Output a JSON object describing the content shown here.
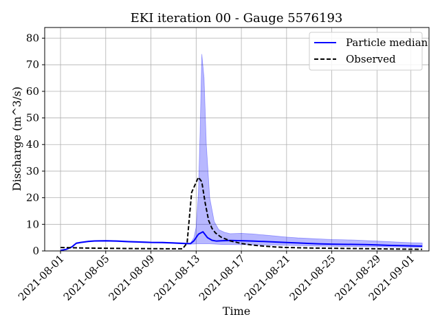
{
  "chart_data": {
    "type": "line",
    "title": "EKI iteration 00 - Gauge 5576193",
    "xlabel": "Time",
    "ylabel": "Discharge (m^3/s)",
    "xlim_days": [
      -1.4,
      32.6
    ],
    "ylim": [
      0,
      84
    ],
    "grid": true,
    "legend_position": "top-right",
    "x_ticks": [
      {
        "day": 0,
        "label": "2021-08-01"
      },
      {
        "day": 4,
        "label": "2021-08-05"
      },
      {
        "day": 8,
        "label": "2021-08-09"
      },
      {
        "day": 12,
        "label": "2021-08-13"
      },
      {
        "day": 16,
        "label": "2021-08-17"
      },
      {
        "day": 20,
        "label": "2021-08-21"
      },
      {
        "day": 24,
        "label": "2021-08-25"
      },
      {
        "day": 28,
        "label": "2021-08-29"
      },
      {
        "day": 31,
        "label": "2021-09-01"
      }
    ],
    "y_ticks": [
      0,
      10,
      20,
      30,
      40,
      50,
      60,
      70,
      80
    ],
    "series": [
      {
        "name": "Particle median",
        "color": "#0000ff",
        "style": "solid",
        "x": [
          0,
          0.5,
          1,
          1.4,
          1.8,
          2.5,
          3,
          4,
          5,
          6,
          7,
          8,
          9,
          10,
          11,
          11.5,
          11.8,
          12.2,
          12.6,
          13,
          13.4,
          13.8,
          14.2,
          15,
          16,
          17,
          18,
          19,
          20,
          21,
          22,
          23,
          24,
          25,
          26,
          27,
          28,
          29,
          30,
          31,
          32
        ],
        "values": [
          0.2,
          0.6,
          1.5,
          2.9,
          3.2,
          3.6,
          3.75,
          3.8,
          3.7,
          3.5,
          3.35,
          3.2,
          3.15,
          3.0,
          2.8,
          2.75,
          3.8,
          6.3,
          7.2,
          5.0,
          4.0,
          3.7,
          3.8,
          3.95,
          3.85,
          3.7,
          3.55,
          3.35,
          3.15,
          3.0,
          2.8,
          2.65,
          2.55,
          2.5,
          2.45,
          2.4,
          2.25,
          2.1,
          2.0,
          1.9,
          1.8
        ]
      },
      {
        "name": "Observed",
        "color": "#000000",
        "style": "dashed",
        "x": [
          0,
          1,
          2,
          4,
          6,
          8,
          10,
          10.8,
          11.2,
          11.6,
          12.2,
          12.5,
          12.8,
          13.1,
          13.4,
          13.7,
          14.2,
          15,
          16,
          17,
          18,
          19,
          20,
          21,
          22,
          24,
          26,
          28,
          30,
          32
        ],
        "values": [
          1.3,
          1.2,
          1.1,
          1.0,
          0.9,
          0.85,
          0.8,
          0.8,
          3.0,
          22.0,
          27.7,
          26.0,
          18.0,
          11.5,
          8.5,
          6.8,
          5.2,
          3.8,
          2.8,
          2.2,
          1.8,
          1.5,
          1.3,
          1.2,
          1.1,
          1.0,
          0.9,
          0.8,
          0.7,
          0.6
        ]
      }
    ],
    "band": {
      "name": "Particle spread",
      "color": "#0000ff",
      "opacity": 0.28,
      "x": [
        0,
        0.5,
        1,
        1.4,
        1.8,
        2.5,
        3,
        4,
        5,
        6,
        7,
        8,
        9,
        10,
        11,
        11.5,
        11.8,
        12,
        12.2,
        12.35,
        12.5,
        12.7,
        12.9,
        13.2,
        13.6,
        14,
        14.5,
        15,
        16,
        17,
        18,
        19,
        20,
        21,
        22,
        23,
        24,
        25,
        26,
        27,
        28,
        29,
        30,
        31,
        32
      ],
      "lower": [
        0.1,
        0.5,
        1.3,
        2.7,
        3.0,
        3.4,
        3.55,
        3.6,
        3.5,
        3.3,
        3.15,
        3.0,
        2.95,
        2.8,
        2.6,
        2.55,
        2.6,
        2.65,
        2.7,
        2.7,
        2.7,
        2.7,
        2.7,
        2.7,
        2.6,
        2.5,
        2.4,
        2.4,
        2.35,
        2.3,
        2.25,
        2.2,
        2.1,
        2.0,
        1.9,
        1.8,
        1.75,
        1.7,
        1.65,
        1.6,
        1.55,
        1.5,
        1.45,
        1.4,
        1.35
      ],
      "upper": [
        0.3,
        0.7,
        1.7,
        3.1,
        3.4,
        3.8,
        3.95,
        4.0,
        3.9,
        3.7,
        3.55,
        3.4,
        3.35,
        3.2,
        3.0,
        2.95,
        5.0,
        9.0,
        22.0,
        45.0,
        74.0,
        65.0,
        40.0,
        20.0,
        11.0,
        8.0,
        7.0,
        6.5,
        6.6,
        6.4,
        6.0,
        5.6,
        5.2,
        4.9,
        4.7,
        4.5,
        4.3,
        4.2,
        4.1,
        3.9,
        3.7,
        3.5,
        3.3,
        3.1,
        3.0
      ]
    }
  }
}
